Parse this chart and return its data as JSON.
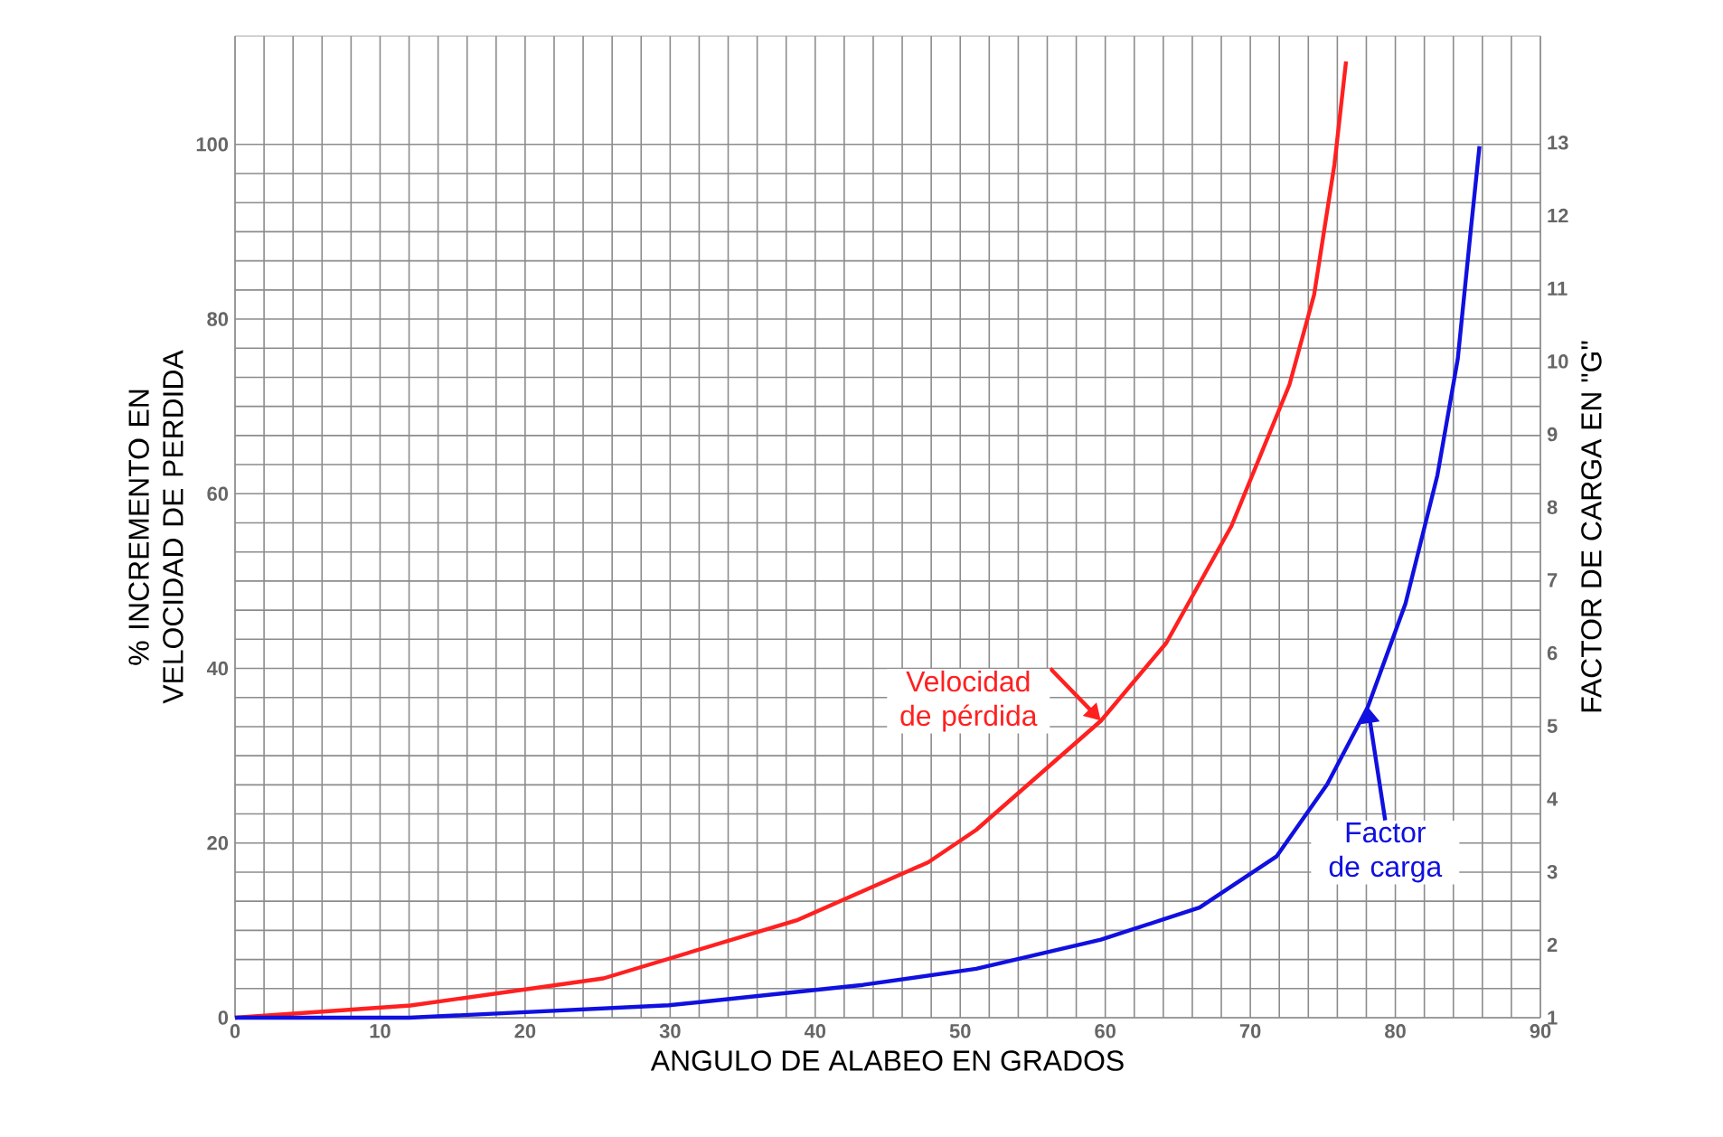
{
  "chart_data": {
    "type": "line",
    "xlabel": "ANGULO DE ALABEO EN  GRADOS",
    "ylabel": "% INCREMENTO EN VELOCIDAD DE PERDIDA",
    "y2label": "FACTOR DE CARGA EN \"G\"",
    "xlim": [
      0,
      90
    ],
    "xticks": [
      0,
      10,
      20,
      30,
      40,
      50,
      60,
      70,
      80,
      90
    ],
    "ylim": [
      0,
      112.4
    ],
    "yticks": [
      0,
      20,
      40,
      60,
      80,
      100
    ],
    "y2lim": [
      1,
      14.46
    ],
    "y2ticks": [
      1,
      2,
      3,
      4,
      5,
      6,
      7,
      8,
      9,
      10,
      11,
      12,
      13
    ],
    "grid": true,
    "series": [
      {
        "color": "#ff2020",
        "axis": "y",
        "x": [
          0,
          12.1,
          25.4,
          38.8,
          47.8,
          51.1,
          59.7,
          64.2,
          68.7,
          72.7,
          74.4,
          75.8,
          76.6
        ],
        "values": [
          0,
          1.4,
          4.5,
          11.2,
          17.8,
          21.5,
          34,
          42.9,
          56.3,
          72.5,
          82.8,
          97.7,
          109.5
        ]
      },
      {
        "color": "#1010e0",
        "axis": "y2",
        "x": [
          0,
          12,
          29.9,
          43.3,
          51.1,
          59.7,
          66.5,
          71.8,
          75.3,
          78.1,
          80.7,
          82.9,
          84.3,
          85.2,
          85.8
        ],
        "values": [
          1,
          1.0,
          1.17,
          1.45,
          1.67,
          2.07,
          2.51,
          3.21,
          4.2,
          5.26,
          6.68,
          8.44,
          10.03,
          11.8,
          12.95
        ]
      }
    ],
    "annotations": [
      {
        "text": "Velocidad de pérdida",
        "x": 59.7,
        "y": 34
      },
      {
        "text": "Factor de carga",
        "x": 78.1,
        "y": 35.6
      }
    ]
  }
}
